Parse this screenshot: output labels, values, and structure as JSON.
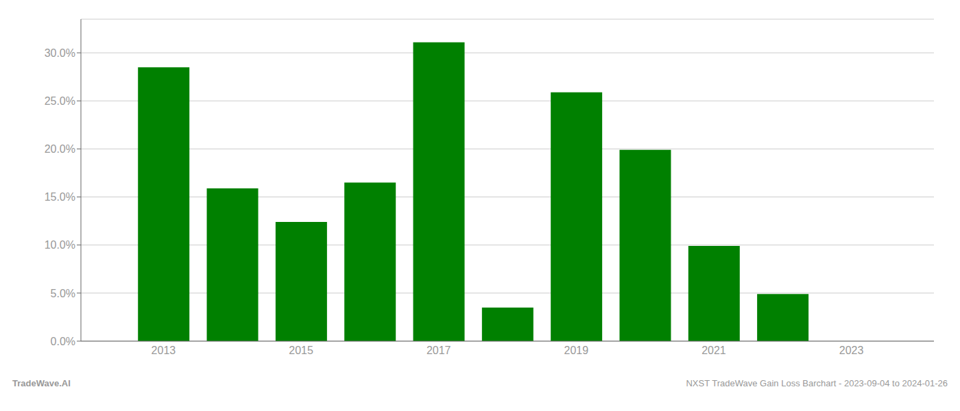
{
  "chart_data": {
    "type": "bar",
    "x": [
      2013,
      2014,
      2015,
      2016,
      2017,
      2018,
      2019,
      2020,
      2021,
      2022
    ],
    "values": [
      0.285,
      0.159,
      0.124,
      0.165,
      0.311,
      0.035,
      0.259,
      0.199,
      0.099,
      0.049
    ],
    "color": "#008000",
    "xlim": [
      2011.8,
      2024.2
    ],
    "xticks": [
      2013,
      2015,
      2017,
      2019,
      2021,
      2023
    ],
    "ylim": [
      0,
      0.335
    ],
    "yticks": [
      {
        "value": 0,
        "label": "0.0%"
      },
      {
        "value": 0.05,
        "label": "5.0%"
      },
      {
        "value": 0.1,
        "label": "10.0%"
      },
      {
        "value": 0.15,
        "label": "15.0%"
      },
      {
        "value": 0.2,
        "label": "20.0%"
      },
      {
        "value": 0.25,
        "label": "25.0%"
      },
      {
        "value": 0.3,
        "label": "30.0%"
      }
    ],
    "grid": true,
    "annotations": [
      "TradeWave.AI",
      "NXST TradeWave Gain Loss Barchart - 2023-09-04 to 2024-01-26"
    ]
  }
}
